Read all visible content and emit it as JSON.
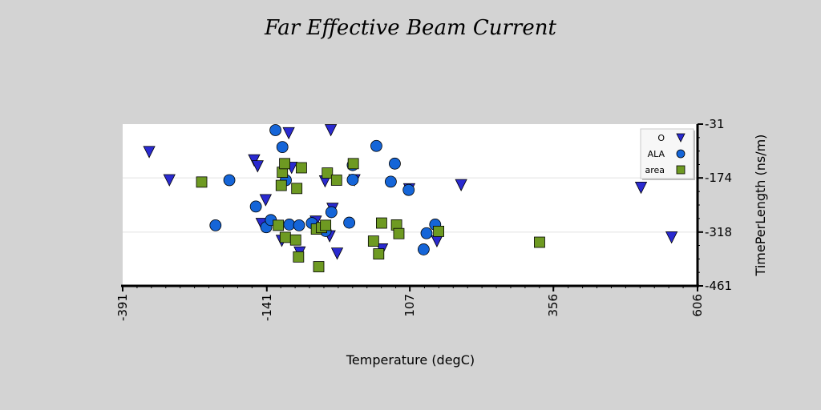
{
  "chart_data": {
    "type": "scatter",
    "title": "Far Effective Beam Current",
    "xlabel": "Temperature (degC)",
    "ylabel": "TimePerLength (ns/m)",
    "xlim": [
      -391,
      606
    ],
    "ylim": [
      -461,
      -31
    ],
    "xticks": [
      -391,
      -141,
      107,
      356,
      606
    ],
    "yticks": [
      -31,
      -174,
      -318,
      -461
    ],
    "grid": true,
    "legend_position": "top-right",
    "series": [
      {
        "name": "O",
        "marker": "triangle-down",
        "color": "#2a2ad0",
        "points": [
          [
            -345,
            -105
          ],
          [
            -310,
            -180
          ],
          [
            -163,
            -127
          ],
          [
            -157,
            -143
          ],
          [
            -143,
            -233
          ],
          [
            -150,
            -296
          ],
          [
            -115,
            -341
          ],
          [
            -103,
            -55
          ],
          [
            -84,
            -372
          ],
          [
            -98,
            -147
          ],
          [
            -56,
            -290
          ],
          [
            -40,
            -183
          ],
          [
            -32,
            -329
          ],
          [
            -30,
            -47
          ],
          [
            -27,
            -256
          ],
          [
            -19,
            -375
          ],
          [
            11,
            -180
          ],
          [
            59,
            -364
          ],
          [
            106,
            -204
          ],
          [
            154,
            -342
          ],
          [
            196,
            -193
          ],
          [
            508,
            -200
          ],
          [
            561,
            -332
          ]
        ]
      },
      {
        "name": "ALA",
        "marker": "circle",
        "color": "#1565d8",
        "points": [
          [
            -206,
            -180
          ],
          [
            -230,
            -300
          ],
          [
            -160,
            -250
          ],
          [
            -142,
            -305
          ],
          [
            -134,
            -286
          ],
          [
            -126,
            -47
          ],
          [
            -114,
            -92
          ],
          [
            -108,
            -180
          ],
          [
            -102,
            -298
          ],
          [
            -85,
            -300
          ],
          [
            -63,
            -294
          ],
          [
            -39,
            -315
          ],
          [
            -29,
            -265
          ],
          [
            2,
            -293
          ],
          [
            8,
            -140
          ],
          [
            8,
            -179
          ],
          [
            49,
            -89
          ],
          [
            74,
            -184
          ],
          [
            81,
            -136
          ],
          [
            105,
            -206
          ],
          [
            136,
            -321
          ],
          [
            131,
            -364
          ],
          [
            151,
            -298
          ]
        ]
      },
      {
        "name": "area",
        "marker": "square",
        "color": "#6e9a22",
        "points": [
          [
            -254,
            -185
          ],
          [
            -121,
            -300
          ],
          [
            -116,
            -194
          ],
          [
            -114,
            -159
          ],
          [
            -110,
            -136
          ],
          [
            -109,
            -332
          ],
          [
            -91,
            -339
          ],
          [
            -89,
            -202
          ],
          [
            -86,
            -384
          ],
          [
            -81,
            -147
          ],
          [
            -55,
            -310
          ],
          [
            -51,
            -410
          ],
          [
            -46,
            -306
          ],
          [
            -39,
            -300
          ],
          [
            -36,
            -161
          ],
          [
            -20,
            -180
          ],
          [
            9,
            -136
          ],
          [
            44,
            -342
          ],
          [
            58,
            -294
          ],
          [
            53,
            -376
          ],
          [
            84,
            -299
          ],
          [
            88,
            -322
          ],
          [
            157,
            -316
          ],
          [
            332,
            -345
          ]
        ]
      }
    ]
  }
}
